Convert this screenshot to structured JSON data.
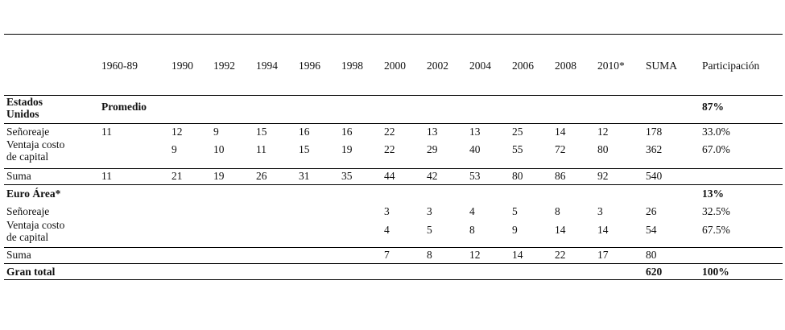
{
  "table": {
    "columns": [
      "1960-89",
      "1990",
      "1992",
      "1994",
      "1996",
      "1998",
      "2000",
      "2002",
      "2004",
      "2006",
      "2008",
      "2010*",
      "SUMA",
      "Participación"
    ],
    "rows": [
      {
        "label": [
          "Estados",
          "Unidos"
        ],
        "cells": [
          "Promedio",
          null,
          null,
          null,
          null,
          null,
          null,
          null,
          null,
          null,
          null,
          null,
          null,
          "87%"
        ]
      },
      {
        "label": [
          "Señoreaje"
        ],
        "cells": [
          11,
          12,
          9,
          15,
          16,
          16,
          22,
          13,
          13,
          25,
          14,
          12,
          178,
          "33.0%"
        ]
      },
      {
        "label": [
          "Ventaja costo",
          "de capital"
        ],
        "cells": [
          null,
          9,
          10,
          11,
          15,
          19,
          22,
          29,
          40,
          55,
          72,
          80,
          362,
          "67.0%"
        ]
      },
      {
        "label": [
          "Suma"
        ],
        "cells": [
          11,
          21,
          19,
          26,
          31,
          35,
          44,
          42,
          53,
          80,
          86,
          92,
          540,
          null
        ]
      },
      {
        "label": [
          "Euro Área*"
        ],
        "cells": [
          null,
          null,
          null,
          null,
          null,
          null,
          null,
          null,
          null,
          null,
          null,
          null,
          null,
          "13%"
        ]
      },
      {
        "label": [
          "Señoreaje"
        ],
        "cells": [
          null,
          null,
          null,
          null,
          null,
          null,
          3,
          3,
          4,
          5,
          8,
          3,
          26,
          "32.5%"
        ]
      },
      {
        "label": [
          "Ventaja costo",
          "de capital"
        ],
        "cells": [
          null,
          null,
          null,
          null,
          null,
          null,
          4,
          5,
          8,
          9,
          14,
          14,
          54,
          "67.5%"
        ]
      },
      {
        "label": [
          "Suma"
        ],
        "cells": [
          null,
          null,
          null,
          null,
          null,
          null,
          7,
          8,
          12,
          14,
          22,
          17,
          80,
          null
        ]
      },
      {
        "label": [
          "Gran total"
        ],
        "cells": [
          null,
          null,
          null,
          null,
          null,
          null,
          null,
          null,
          null,
          null,
          null,
          null,
          620,
          "100%"
        ]
      }
    ]
  }
}
